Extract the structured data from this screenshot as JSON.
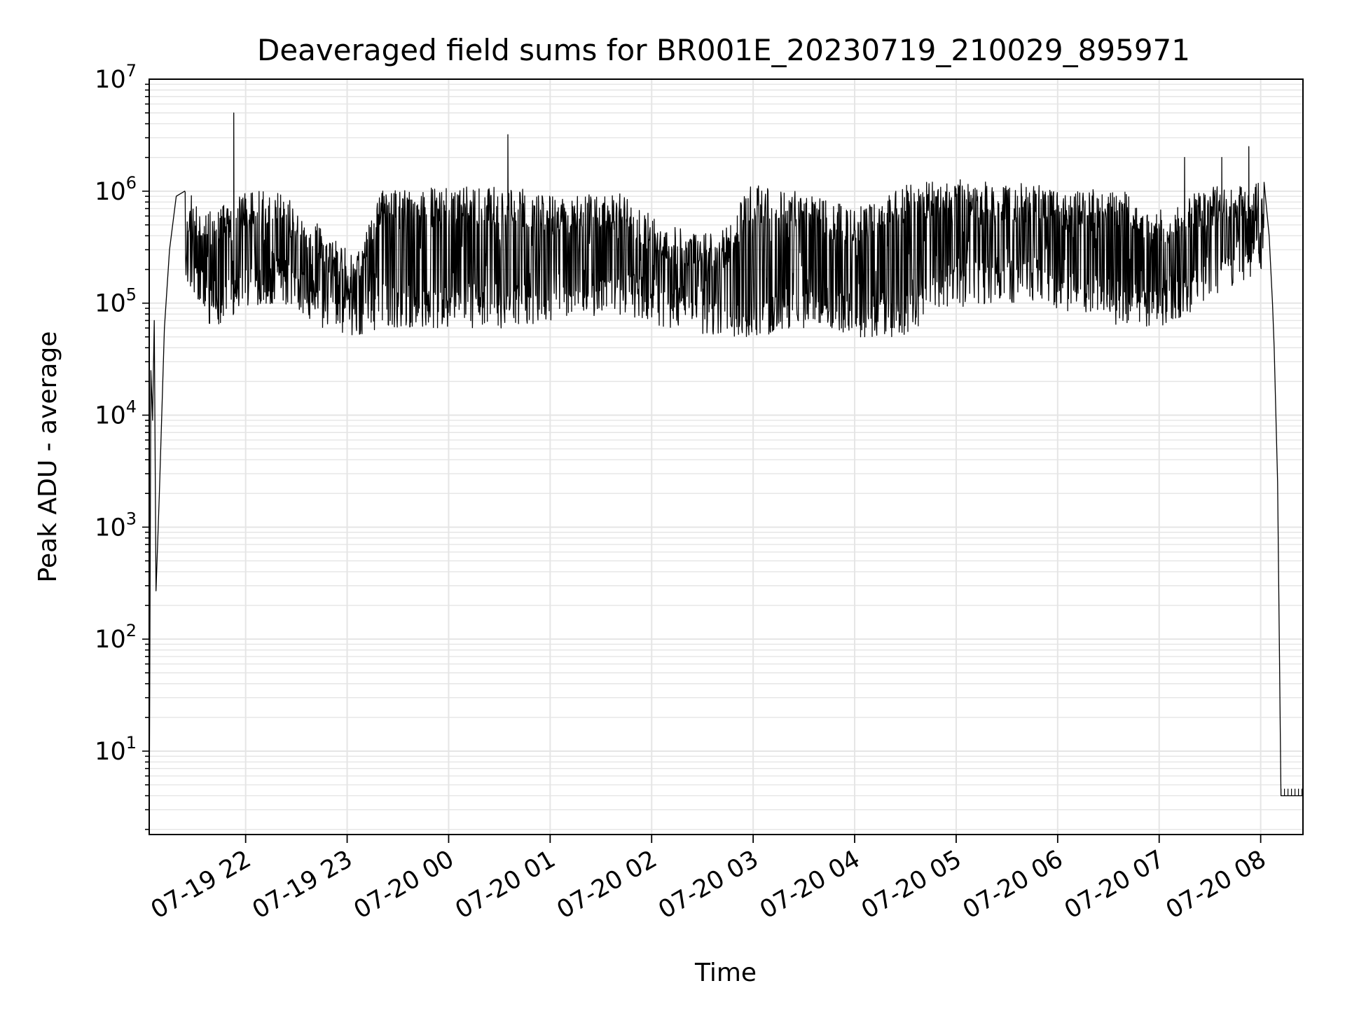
{
  "chart_data": {
    "type": "line",
    "title": "Deaveraged field sums for BR001E_20230719_210029_895971",
    "xlabel": "Time",
    "ylabel": "Peak ADU - average",
    "yscale": "log",
    "ylim": [
      1.8,
      10000000
    ],
    "xlim": [
      "2023-07-19 21:03",
      "2023-07-20 08:25"
    ],
    "grid": true,
    "line_color": "#000000",
    "grid_color": "#e5e5e5",
    "x_ticks": [
      {
        "t": "2023-07-19 22:00",
        "label": "07-19 22"
      },
      {
        "t": "2023-07-19 23:00",
        "label": "07-19 23"
      },
      {
        "t": "2023-07-20 00:00",
        "label": "07-20 00"
      },
      {
        "t": "2023-07-20 01:00",
        "label": "07-20 01"
      },
      {
        "t": "2023-07-20 02:00",
        "label": "07-20 02"
      },
      {
        "t": "2023-07-20 03:00",
        "label": "07-20 03"
      },
      {
        "t": "2023-07-20 04:00",
        "label": "07-20 04"
      },
      {
        "t": "2023-07-20 05:00",
        "label": "07-20 05"
      },
      {
        "t": "2023-07-20 06:00",
        "label": "07-20 06"
      },
      {
        "t": "2023-07-20 07:00",
        "label": "07-20 07"
      },
      {
        "t": "2023-07-20 08:00",
        "label": "07-20 08"
      }
    ],
    "y_ticks": [
      {
        "value": 10,
        "base": "10",
        "exp": "1"
      },
      {
        "value": 100,
        "base": "10",
        "exp": "2"
      },
      {
        "value": 1000,
        "base": "10",
        "exp": "3"
      },
      {
        "value": 10000,
        "base": "10",
        "exp": "4"
      },
      {
        "value": 100000,
        "base": "10",
        "exp": "5"
      },
      {
        "value": 1000000,
        "base": "10",
        "exp": "6"
      },
      {
        "value": 10000000,
        "base": "10",
        "exp": "7"
      }
    ],
    "envelope": {
      "note_x": "time",
      "points": [
        {
          "t": "2023-07-19 21:24",
          "low": 150000,
          "high": 1000000
        },
        {
          "t": "2023-07-19 21:40",
          "low": 60000,
          "high": 700000
        },
        {
          "t": "2023-07-19 22:00",
          "low": 90000,
          "high": 1000000
        },
        {
          "t": "2023-07-19 22:20",
          "low": 100000,
          "high": 1000000
        },
        {
          "t": "2023-07-19 22:45",
          "low": 60000,
          "high": 500000
        },
        {
          "t": "2023-07-19 23:05",
          "low": 50000,
          "high": 250000
        },
        {
          "t": "2023-07-19 23:20",
          "low": 60000,
          "high": 1000000
        },
        {
          "t": "2023-07-20 00:00",
          "low": 60000,
          "high": 1100000
        },
        {
          "t": "2023-07-20 00:40",
          "low": 60000,
          "high": 1100000
        },
        {
          "t": "2023-07-20 01:00",
          "low": 70000,
          "high": 900000
        },
        {
          "t": "2023-07-20 01:40",
          "low": 80000,
          "high": 1000000
        },
        {
          "t": "2023-07-20 02:10",
          "low": 60000,
          "high": 500000
        },
        {
          "t": "2023-07-20 02:40",
          "low": 50000,
          "high": 400000
        },
        {
          "t": "2023-07-20 03:00",
          "low": 50000,
          "high": 1200000
        },
        {
          "t": "2023-07-20 03:30",
          "low": 60000,
          "high": 1000000
        },
        {
          "t": "2023-07-20 04:00",
          "low": 50000,
          "high": 700000
        },
        {
          "t": "2023-07-20 04:30",
          "low": 50000,
          "high": 1200000
        },
        {
          "t": "2023-07-20 04:55",
          "low": 90000,
          "high": 1300000
        },
        {
          "t": "2023-07-20 05:30",
          "low": 100000,
          "high": 1200000
        },
        {
          "t": "2023-07-20 06:00",
          "low": 90000,
          "high": 1100000
        },
        {
          "t": "2023-07-20 06:40",
          "low": 60000,
          "high": 1000000
        },
        {
          "t": "2023-07-20 07:00",
          "low": 60000,
          "high": 700000
        },
        {
          "t": "2023-07-20 07:30",
          "low": 100000,
          "high": 1100000
        },
        {
          "t": "2023-07-20 08:02",
          "low": 200000,
          "high": 1200000
        }
      ]
    },
    "spikes": [
      {
        "t": "2023-07-19 21:53",
        "value": 5000000
      },
      {
        "t": "2023-07-20 00:35",
        "value": 3200000
      },
      {
        "t": "2023-07-19 21:20",
        "value": 1800000
      },
      {
        "t": "2023-07-20 07:53",
        "value": 2500000
      },
      {
        "t": "2023-07-20 07:37",
        "value": 2000000
      },
      {
        "t": "2023-07-20 07:15",
        "value": 2000000
      }
    ],
    "ramp_start": [
      {
        "t": "2023-07-19 21:03",
        "value": 2
      },
      {
        "t": "2023-07-19 21:04",
        "value": 25000
      },
      {
        "t": "2023-07-19 21:05",
        "value": 9000
      },
      {
        "t": "2023-07-19 21:06",
        "value": 70000
      },
      {
        "t": "2023-07-19 21:07",
        "value": 270
      },
      {
        "t": "2023-07-19 21:09",
        "value": 2000
      },
      {
        "t": "2023-07-19 21:12",
        "value": 60000
      },
      {
        "t": "2023-07-19 21:15",
        "value": 300000
      },
      {
        "t": "2023-07-19 21:19",
        "value": 900000
      },
      {
        "t": "2023-07-19 21:24",
        "value": 1000000
      }
    ],
    "ramp_end": [
      {
        "t": "2023-07-20 08:02",
        "value": 1200000
      },
      {
        "t": "2023-07-20 08:05",
        "value": 400000
      },
      {
        "t": "2023-07-20 08:07",
        "value": 100000
      },
      {
        "t": "2023-07-20 08:08",
        "value": 40000
      },
      {
        "t": "2023-07-20 08:10",
        "value": 2500
      },
      {
        "t": "2023-07-20 08:12",
        "value": 4
      },
      {
        "t": "2023-07-20 08:25",
        "value": 4
      }
    ]
  }
}
